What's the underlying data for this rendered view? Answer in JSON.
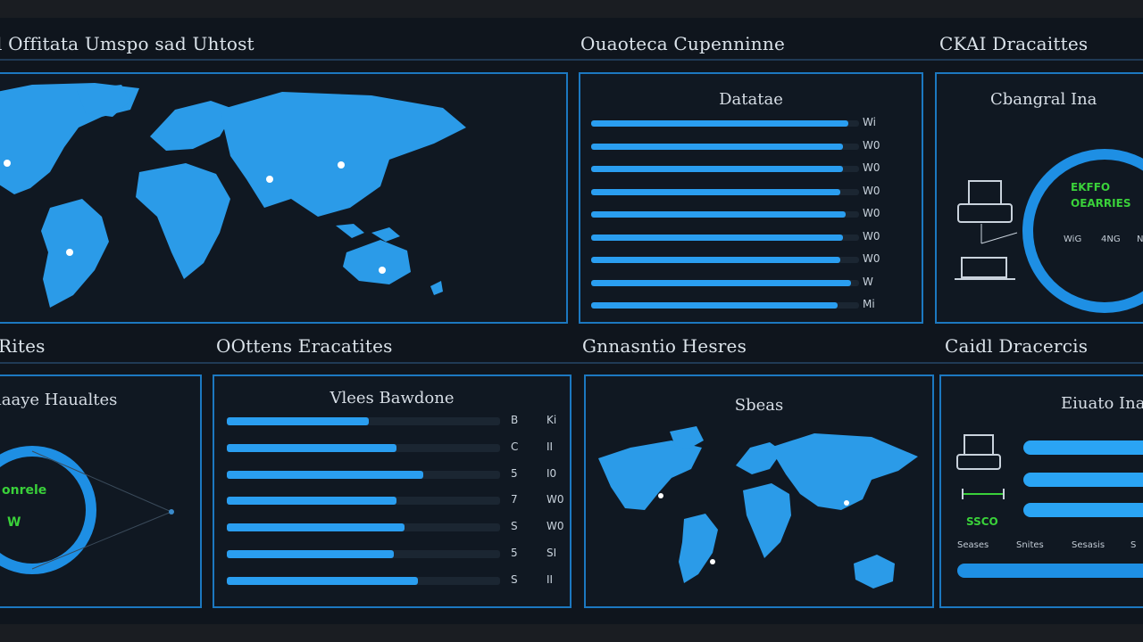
{
  "header": {
    "title_left": "l Offitata Umspo sad Uhtost",
    "title_mid": "Ouaoteca Cupenninne",
    "title_right": "CKAI Dracaittes"
  },
  "panel_bars_top": {
    "title": "Datatae",
    "rows": [
      {
        "value": 0.96,
        "num": "Wi"
      },
      {
        "value": 0.94,
        "num": "W0"
      },
      {
        "value": 0.94,
        "num": "W0"
      },
      {
        "value": 0.93,
        "num": "W0"
      },
      {
        "value": 0.95,
        "num": "W0"
      },
      {
        "value": 0.94,
        "num": "W0"
      },
      {
        "value": 0.93,
        "num": "W0"
      },
      {
        "value": 0.97,
        "num": "W"
      },
      {
        "value": 0.92,
        "num": "Mi"
      }
    ]
  },
  "panel_ring_top": {
    "title": "Cbangral Ina",
    "green_1": "EKFFO",
    "green_2": "OEARRIES",
    "small": [
      "WiG",
      "4NG",
      "NG"
    ]
  },
  "row2": {
    "title_1": "Rites",
    "title_2": "OOttens Eracatites",
    "title_3": "Gnnasntio Hesres",
    "title_4": "Caidl Dracercis"
  },
  "panel_ring_left": {
    "title": "laaye Haualtes",
    "green_1": "onrele",
    "green_2": "W"
  },
  "panel_bars_bottom": {
    "title": "Vlees Bawdone",
    "rows": [
      {
        "value": 0.52,
        "num1": "B",
        "num2": "Ki"
      },
      {
        "value": 0.62,
        "num1": "C",
        "num2": "II"
      },
      {
        "value": 0.72,
        "num1": "5",
        "num2": "I0"
      },
      {
        "value": 0.62,
        "num1": "7",
        "num2": "W0"
      },
      {
        "value": 0.65,
        "num1": "S",
        "num2": "W0"
      },
      {
        "value": 0.61,
        "num1": "5",
        "num2": "SI"
      },
      {
        "value": 0.7,
        "num1": "S",
        "num2": "II"
      }
    ]
  },
  "panel_map_bottom": {
    "title": "Sbeas"
  },
  "panel_info_bottom": {
    "title": "Eiuato Ina",
    "green": "SSCO",
    "small": [
      "Seases",
      "Snites",
      "Sesasis",
      "S"
    ]
  }
}
